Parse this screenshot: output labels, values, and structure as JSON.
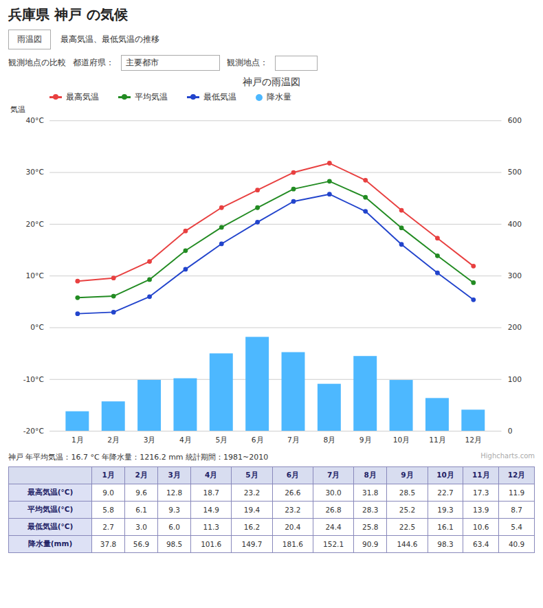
{
  "chart_data": {
    "type": "line",
    "title": "神戸の雨温図",
    "annotations": [
      "兵庫県 神戸 の気候",
      "雨温図",
      "最高気温、最低気温の推移",
      "観測地点の比較",
      "都道府県：",
      "主要都市",
      "観測地点：",
      "神戸 年平均気温：16.7 °C  年降水量：1216.2 mm  統計期間：1981~2010",
      "Highcharts.com"
    ],
    "ylabel": "気温",
    "categories": [
      "1月",
      "2月",
      "3月",
      "4月",
      "5月",
      "6月",
      "7月",
      "8月",
      "9月",
      "10月",
      "11月",
      "12月"
    ],
    "series": [
      {
        "name": "最高気温",
        "table_label": "最高気温(°C)",
        "type": "line",
        "marker": "circle",
        "color": "#e84040",
        "values": [
          9.0,
          9.6,
          12.8,
          18.7,
          23.2,
          26.6,
          30.0,
          31.8,
          28.5,
          22.7,
          17.3,
          11.9
        ]
      },
      {
        "name": "平均気温",
        "table_label": "平均気温(°C)",
        "type": "line",
        "marker": "circle",
        "color": "#228B22",
        "values": [
          5.8,
          6.1,
          9.3,
          14.9,
          19.4,
          23.2,
          26.8,
          28.3,
          25.2,
          19.3,
          13.9,
          8.7
        ]
      },
      {
        "name": "最低気温",
        "table_label": "最低気温(°C)",
        "type": "line",
        "marker": "circle",
        "color": "#2244cc",
        "values": [
          2.7,
          3.0,
          6.0,
          11.3,
          16.2,
          20.4,
          24.4,
          25.8,
          22.5,
          16.1,
          10.6,
          5.4
        ]
      },
      {
        "name": "降水量",
        "table_label": "降水量(mm)",
        "type": "bar",
        "axis": "y2",
        "color": "#4db8ff",
        "values": [
          37.8,
          56.9,
          98.5,
          101.6,
          149.7,
          181.6,
          152.1,
          90.9,
          144.6,
          98.3,
          63.4,
          40.9
        ]
      }
    ],
    "ylim": [
      -20,
      40
    ],
    "yticks": [
      {
        "value": -20,
        "label": "-20°C"
      },
      {
        "value": -10,
        "label": "-10°C"
      },
      {
        "value": 0,
        "label": "0°C"
      },
      {
        "value": 10,
        "label": "10°C"
      },
      {
        "value": 20,
        "label": "20°C"
      },
      {
        "value": 30,
        "label": "30°C"
      },
      {
        "value": 40,
        "label": "40°C"
      }
    ],
    "y2lim": [
      0,
      600
    ],
    "y2ticks": [
      0,
      100,
      200,
      300,
      400,
      500,
      600
    ],
    "grid": true,
    "legend": "top"
  }
}
